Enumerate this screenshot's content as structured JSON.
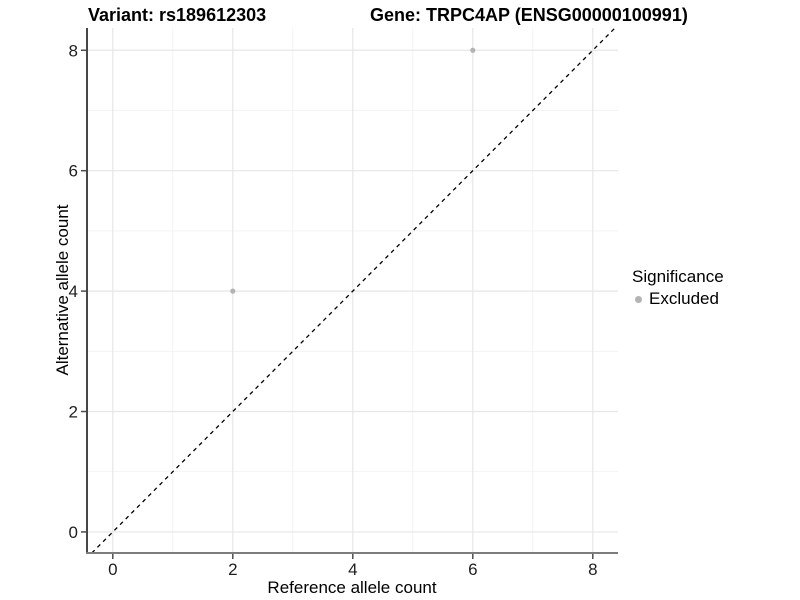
{
  "figure": {
    "background": "#ffffff"
  },
  "chart_data": {
    "type": "scatter",
    "titles": {
      "left": "Variant: rs189612303",
      "right": "Gene: TRPC4AP (ENSG00000100991)"
    },
    "xlabel": "Reference allele count",
    "ylabel": "Alternative allele count",
    "xlim": [
      -0.43,
      8.42
    ],
    "ylim": [
      -0.35,
      8.37
    ],
    "xticks": [
      0,
      2,
      4,
      6,
      8
    ],
    "yticks": [
      0,
      2,
      4,
      6,
      8
    ],
    "minor_xticks": [
      1,
      3,
      5,
      7
    ],
    "minor_yticks": [
      1,
      3,
      5,
      7
    ],
    "grid": true,
    "identity_line": {
      "equation": "y = x",
      "style": "dashed",
      "color": "#000000"
    },
    "series": [
      {
        "name": "Excluded",
        "color": "#b3b3b3",
        "points": [
          {
            "x": 2,
            "y": 4
          },
          {
            "x": 6,
            "y": 8
          }
        ]
      }
    ],
    "legend": {
      "title": "Significance",
      "position": "right",
      "entries": [
        {
          "label": "Excluded",
          "color": "#b3b3b3",
          "marker": "circle"
        }
      ]
    },
    "colors": {
      "major_grid": "#e6e6e6",
      "minor_grid": "#f2f2f2",
      "axis_left": "#474747",
      "axis_bottom": "#7d7d7d",
      "tick_mark": "#4d4d4d",
      "tick_text": "#1f1f1f"
    }
  }
}
